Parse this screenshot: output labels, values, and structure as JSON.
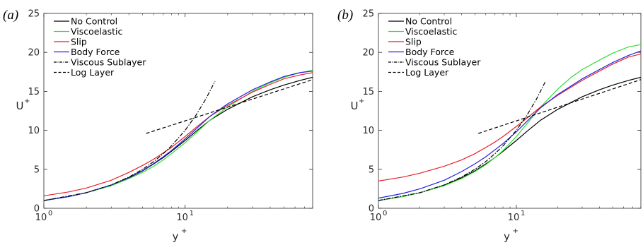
{
  "chart_data": [
    {
      "panel_label": "(a)",
      "type": "line",
      "xlabel": "y",
      "xlabel_sup": "+",
      "ylabel": "U",
      "ylabel_sup": "+",
      "xscale": "log",
      "xlim": [
        1,
        80
      ],
      "ylim": [
        0,
        25
      ],
      "x_ticks": [
        {
          "value": 1,
          "base": "10",
          "exp": "0"
        },
        {
          "value": 10,
          "base": "10",
          "exp": "1"
        }
      ],
      "y_ticks": [
        0,
        5,
        10,
        15,
        20,
        25
      ],
      "legend_position": "top-left",
      "series": [
        {
          "name": "No Control",
          "color": "#000000",
          "dash": "solid",
          "x": [
            1,
            1.5,
            2,
            3,
            4,
            5,
            6,
            7,
            8,
            10,
            12,
            15,
            20,
            30,
            40,
            50,
            65,
            80
          ],
          "y": [
            1.0,
            1.5,
            2.0,
            2.95,
            3.9,
            4.8,
            5.7,
            6.5,
            7.3,
            8.7,
            9.9,
            11.3,
            12.7,
            14.3,
            15.2,
            15.8,
            16.4,
            16.8
          ]
        },
        {
          "name": "Viscoelastic",
          "color": "#33dd33",
          "dash": "solid",
          "x": [
            1,
            1.5,
            2,
            3,
            4,
            5,
            6,
            7,
            8,
            10,
            12,
            15,
            20,
            30,
            40,
            50,
            65,
            80
          ],
          "y": [
            1.0,
            1.5,
            2.0,
            2.9,
            3.8,
            4.6,
            5.4,
            6.2,
            7.0,
            8.4,
            9.7,
            11.3,
            13.0,
            15.0,
            16.1,
            16.8,
            17.4,
            17.7
          ]
        },
        {
          "name": "Slip",
          "color": "#e8202a",
          "dash": "solid",
          "x": [
            1,
            1.5,
            2,
            3,
            4,
            5,
            6,
            7,
            8,
            10,
            12,
            15,
            20,
            30,
            40,
            50,
            65,
            80
          ],
          "y": [
            1.6,
            2.1,
            2.6,
            3.6,
            4.6,
            5.5,
            6.3,
            7.1,
            7.8,
            9.2,
            10.4,
            11.8,
            13.2,
            14.9,
            15.9,
            16.6,
            17.1,
            17.4
          ]
        },
        {
          "name": "Body Force",
          "color": "#2222dd",
          "dash": "solid",
          "x": [
            1,
            1.5,
            2,
            3,
            4,
            5,
            6,
            7,
            8,
            10,
            12,
            15,
            20,
            30,
            40,
            50,
            65,
            80
          ],
          "y": [
            1.0,
            1.5,
            2.0,
            3.0,
            3.95,
            4.85,
            5.75,
            6.6,
            7.4,
            8.9,
            10.2,
            11.8,
            13.4,
            15.2,
            16.2,
            16.9,
            17.4,
            17.6
          ]
        },
        {
          "name": "Viscous Sublayer",
          "color": "#000000",
          "dash": "dashdot",
          "x": [
            1,
            2,
            3,
            4,
            5,
            6,
            7,
            8,
            10,
            12,
            14,
            16.3
          ],
          "y": [
            1,
            2,
            3,
            4,
            5,
            6,
            7,
            8,
            10,
            12,
            14,
            16.3
          ]
        },
        {
          "name": "Log Layer",
          "color": "#000000",
          "dash": "dashed",
          "x": [
            5.3,
            80
          ],
          "y": [
            9.6,
            16.5
          ]
        }
      ]
    },
    {
      "panel_label": "(b)",
      "type": "line",
      "xlabel": "y",
      "xlabel_sup": "+",
      "ylabel": "U",
      "ylabel_sup": "+",
      "xscale": "log",
      "xlim": [
        1,
        80
      ],
      "ylim": [
        0,
        25
      ],
      "x_ticks": [
        {
          "value": 1,
          "base": "10",
          "exp": "0"
        },
        {
          "value": 10,
          "base": "10",
          "exp": "1"
        }
      ],
      "y_ticks": [
        0,
        5,
        10,
        15,
        20,
        25
      ],
      "legend_position": "top-left",
      "series": [
        {
          "name": "No Control",
          "color": "#000000",
          "dash": "solid",
          "x": [
            1,
            1.5,
            2,
            3,
            4,
            5,
            6,
            7,
            8,
            10,
            12,
            15,
            20,
            30,
            40,
            50,
            65,
            80
          ],
          "y": [
            1.0,
            1.5,
            2.0,
            2.95,
            3.9,
            4.8,
            5.7,
            6.5,
            7.3,
            8.7,
            9.9,
            11.3,
            12.7,
            14.3,
            15.2,
            15.8,
            16.4,
            16.8
          ]
        },
        {
          "name": "Viscoelastic",
          "color": "#33dd33",
          "dash": "solid",
          "x": [
            1,
            1.5,
            2,
            3,
            4,
            5,
            6,
            7,
            8,
            10,
            12,
            15,
            20,
            25,
            30,
            40,
            50,
            65,
            80
          ],
          "y": [
            1.0,
            1.5,
            2.0,
            2.9,
            3.8,
            4.7,
            5.6,
            6.5,
            7.4,
            9.2,
            10.9,
            13.0,
            15.3,
            16.8,
            17.8,
            19.0,
            19.9,
            20.7,
            21.0
          ]
        },
        {
          "name": "Slip",
          "color": "#e8202a",
          "dash": "solid",
          "x": [
            1,
            1.5,
            2,
            3,
            4,
            5,
            6,
            7,
            8,
            10,
            12,
            15,
            20,
            30,
            40,
            50,
            65,
            80
          ],
          "y": [
            3.5,
            4.0,
            4.5,
            5.4,
            6.2,
            7.0,
            7.8,
            8.5,
            9.2,
            10.5,
            11.6,
            13.0,
            14.5,
            16.4,
            17.6,
            18.5,
            19.4,
            19.8
          ]
        },
        {
          "name": "Body Force",
          "color": "#2222dd",
          "dash": "solid",
          "x": [
            1,
            1.5,
            2,
            3,
            4,
            5,
            6,
            7,
            8,
            10,
            12,
            15,
            20,
            30,
            40,
            50,
            65,
            80
          ],
          "y": [
            1.3,
            1.9,
            2.5,
            3.6,
            4.7,
            5.7,
            6.6,
            7.5,
            8.3,
            9.8,
            11.2,
            12.9,
            14.6,
            16.6,
            17.8,
            18.7,
            19.6,
            20.2
          ]
        },
        {
          "name": "Viscous Sublayer",
          "color": "#000000",
          "dash": "dashdot",
          "x": [
            1,
            2,
            3,
            4,
            5,
            6,
            7,
            8,
            10,
            12,
            14,
            16.3
          ],
          "y": [
            1,
            2,
            3,
            4,
            5,
            6,
            7,
            8,
            10,
            12,
            14,
            16.3
          ]
        },
        {
          "name": "Log Layer",
          "color": "#000000",
          "dash": "dashed",
          "x": [
            5.3,
            80
          ],
          "y": [
            9.6,
            16.5
          ]
        }
      ]
    }
  ]
}
